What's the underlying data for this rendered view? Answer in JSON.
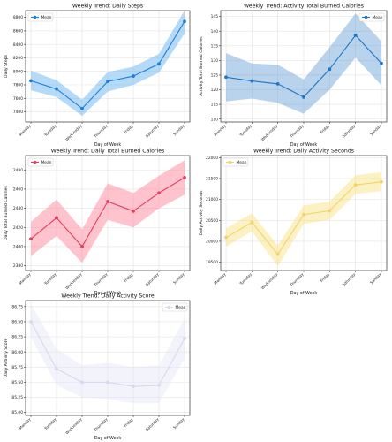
{
  "figure": {
    "background": "#ffffff"
  },
  "chart_data": [
    {
      "type": "line",
      "title": "Weekly Trend: Daily Steps",
      "xlabel": "Day of Week",
      "ylabel": "Daily Steps",
      "categories": [
        "Monday",
        "Tuesday",
        "Wednesday",
        "Thursday",
        "Friday",
        "Saturday",
        "Sunday"
      ],
      "ylim": [
        7250,
        8900
      ],
      "yticks": [
        7400,
        7600,
        7800,
        8000,
        8200,
        8400,
        8600,
        8800
      ],
      "grid": true,
      "legend": {
        "position": "top-left"
      },
      "color": "#1f7fd6",
      "band_color": "#5aaef0",
      "band_opacity": 0.45,
      "series": [
        {
          "name": "Mean",
          "values": [
            7860,
            7740,
            7450,
            7850,
            7930,
            8110,
            8740
          ],
          "lower": [
            7720,
            7620,
            7340,
            7700,
            7800,
            7980,
            8560
          ],
          "upper": [
            8010,
            7870,
            7580,
            7990,
            8070,
            8260,
            8900
          ]
        }
      ]
    },
    {
      "type": "line",
      "title": "Weekly Trend: Activity Total Burned Calories",
      "xlabel": "Day of Week",
      "ylabel": "Activity Total Burned Calories",
      "categories": [
        "Monday",
        "Tuesday",
        "Wednesday",
        "Thursday",
        "Friday",
        "Saturday",
        "Sunday"
      ],
      "ylim": [
        109,
        147
      ],
      "yticks": [
        110,
        115,
        120,
        125,
        130,
        135,
        140,
        145
      ],
      "grid": true,
      "legend": {
        "position": "top-right"
      },
      "color": "#1f77c4",
      "band_color": "#4f92d2",
      "band_opacity": 0.4,
      "series": [
        {
          "name": "Mean",
          "values": [
            124.3,
            123.0,
            122.0,
            117.5,
            127.0,
            138.6,
            129.0
          ],
          "lower": [
            116.0,
            117.0,
            115.5,
            111.8,
            120.0,
            131.0,
            121.5
          ],
          "upper": [
            132.5,
            129.0,
            128.5,
            123.5,
            134.5,
            146.0,
            136.5
          ]
        }
      ]
    },
    {
      "type": "line",
      "title": "Weekly Trend: Daily Total Burned Calories",
      "xlabel": "Day of Week",
      "ylabel": "Daily Total Burned Calories",
      "categories": [
        "Monday",
        "Tuesday",
        "Wednesday",
        "Thursday",
        "Friday",
        "Saturday",
        "Sunday"
      ],
      "ylim": [
        2375,
        2495
      ],
      "yticks": [
        2380,
        2400,
        2420,
        2440,
        2460,
        2480
      ],
      "grid": true,
      "legend": {
        "position": "top-left"
      },
      "color": "#e0405e",
      "band_color": "#ff7a93",
      "band_opacity": 0.45,
      "series": [
        {
          "name": "Mean",
          "values": [
            2408,
            2430,
            2400,
            2447,
            2437,
            2456,
            2472
          ],
          "lower": [
            2390,
            2411,
            2383,
            2428,
            2420,
            2440,
            2454
          ],
          "upper": [
            2426,
            2449,
            2418,
            2466,
            2456,
            2474,
            2490
          ]
        }
      ]
    },
    {
      "type": "line",
      "title": "Weekly Trend: Daily Activity Seconds",
      "xlabel": "Day of Week",
      "ylabel": "Daily Activity Seconds",
      "categories": [
        "Monday",
        "Tuesday",
        "Wednesday",
        "Thursday",
        "Friday",
        "Saturday",
        "Sunday"
      ],
      "ylim": [
        19300,
        22050
      ],
      "yticks": [
        19500,
        20000,
        20500,
        21000,
        21500,
        22000
      ],
      "grid": true,
      "legend": {
        "position": "top-left"
      },
      "color": "#f1d36a",
      "band_color": "#f8e07a",
      "band_opacity": 0.45,
      "series": [
        {
          "name": "Mean",
          "values": [
            20090,
            20450,
            19690,
            20640,
            20730,
            21350,
            21420
          ],
          "lower": [
            19870,
            20240,
            19400,
            20420,
            20510,
            21130,
            21200
          ],
          "upper": [
            20310,
            20670,
            19900,
            20860,
            20950,
            21580,
            21650
          ]
        }
      ]
    },
    {
      "type": "line",
      "title": "Weekly Trend: Daily Activity Score",
      "xlabel": "Day of Week",
      "ylabel": "Daily Activity Score",
      "categories": [
        "Monday",
        "Tuesday",
        "Wednesday",
        "Thursday",
        "Friday",
        "Saturday",
        "Sunday"
      ],
      "ylim": [
        84.95,
        86.85
      ],
      "yticks": [
        85.0,
        85.25,
        85.5,
        85.75,
        86.0,
        86.25,
        86.5,
        86.75
      ],
      "grid": true,
      "legend": {
        "position": "top-right"
      },
      "color": "#d8d8ee",
      "band_color": "#e4e4f8",
      "band_opacity": 0.45,
      "series": [
        {
          "name": "Mean",
          "values": [
            86.5,
            85.72,
            85.5,
            85.5,
            85.43,
            85.45,
            86.22
          ],
          "lower": [
            86.25,
            85.45,
            85.25,
            85.22,
            85.15,
            85.15,
            85.9
          ],
          "upper": [
            86.8,
            86.05,
            85.78,
            85.82,
            85.75,
            85.78,
            86.55
          ]
        }
      ]
    }
  ]
}
